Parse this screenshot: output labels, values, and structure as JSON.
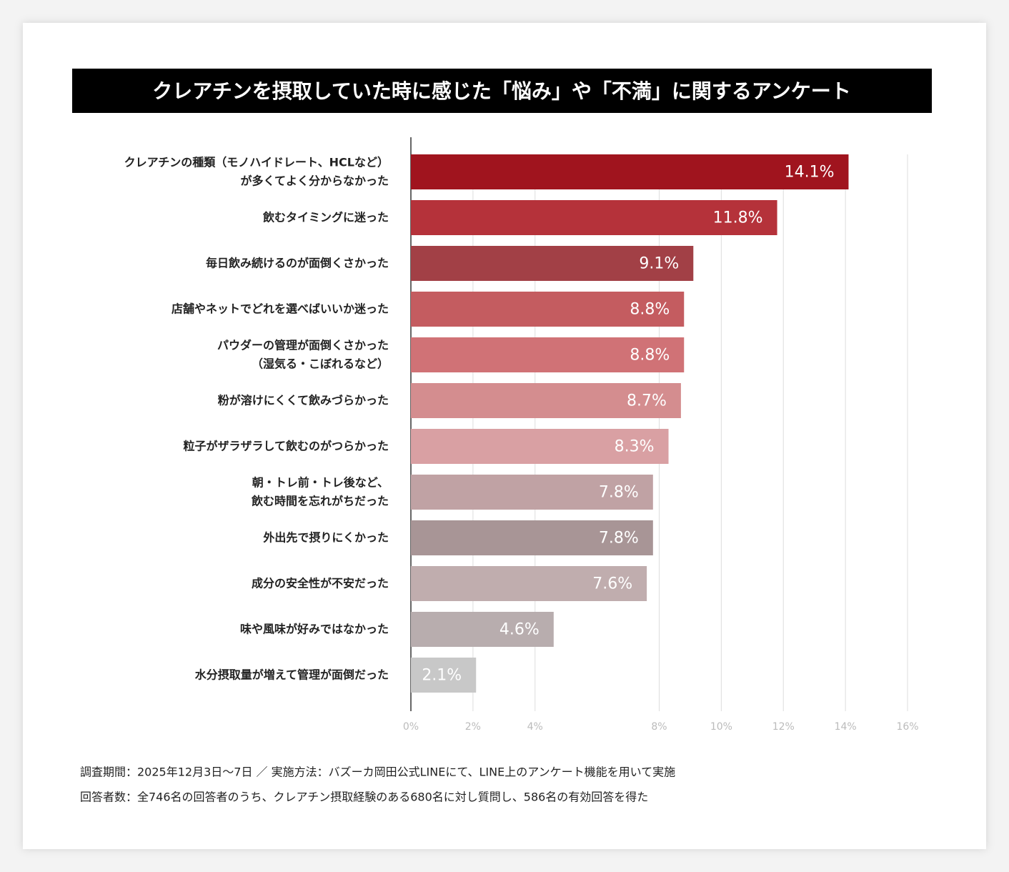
{
  "chart_data": {
    "type": "barh",
    "title": "クレアチンを摂取していた時に感じた「悩み」や「不満」に関するアンケート",
    "categories": [
      "クレアチンの種類（モノハイドレート、HCLなど）\nが多くてよく分からなかった",
      "飲むタイミングに迷った",
      "毎日飲み続けるのが面倒くさかった",
      "店舗やネットでどれを選べばいいか迷った",
      "パウダーの管理が面倒くさかった\n（湿気る・こぼれるなど）",
      "粉が溶けにくくて飲みづらかった",
      "粒子がザラザラして飲むのがつらかった",
      "朝・トレ前・トレ後など、\n飲む時間を忘れがちだった",
      "外出先で摂りにくかった",
      "成分の安全性が不安だった",
      "味や風味が好みではなかった",
      "水分摂取量が増えて管理が面倒だった"
    ],
    "values": [
      14.1,
      11.8,
      9.1,
      8.8,
      8.8,
      8.7,
      8.3,
      7.8,
      7.8,
      7.6,
      4.6,
      2.1
    ],
    "value_labels": [
      "14.1%",
      "11.8%",
      "9.1%",
      "8.8%",
      "8.8%",
      "8.7%",
      "8.3%",
      "7.8%",
      "7.8%",
      "7.6%",
      "4.6%",
      "2.1%"
    ],
    "colors": [
      "#a0141e",
      "#b5323a",
      "#a24046",
      "#c45c60",
      "#d07276",
      "#d48d8f",
      "#d9a0a3",
      "#c0a2a4",
      "#a89596",
      "#c0adae",
      "#b8adae",
      "#c8c8c8"
    ],
    "xlim": [
      0,
      16
    ],
    "xticks": [
      {
        "value": 0,
        "label": "0%"
      },
      {
        "value": 2,
        "label": "2%"
      },
      {
        "value": 4,
        "label": "4%"
      },
      {
        "value": 8,
        "label": "8%"
      },
      {
        "value": 10,
        "label": "10%"
      },
      {
        "value": 12,
        "label": "12%"
      },
      {
        "value": 14,
        "label": "14%"
      },
      {
        "value": 16,
        "label": "16%"
      }
    ],
    "grid": true,
    "notes": [
      "調査期間：2025年12月3日〜7日 ／ 実施方法：バズーカ岡田公式LINEにて、LINE上のアンケート機能を用いて実施",
      "回答者数：全746名の回答者のうち、クレアチン摂取経験のある680名に対し質問し、586名の有効回答を得た"
    ]
  }
}
